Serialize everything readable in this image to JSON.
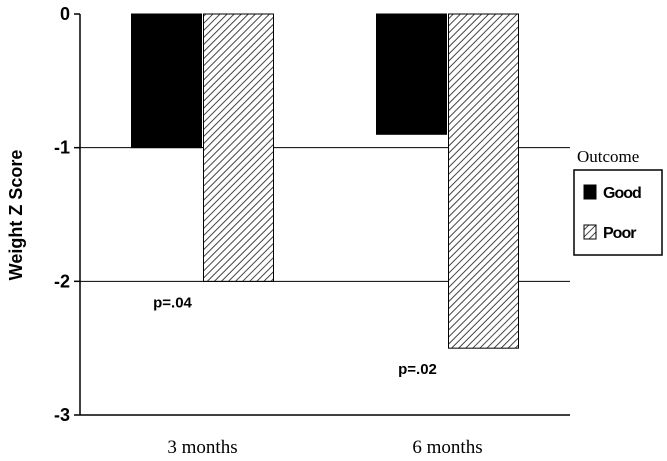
{
  "chart_data": {
    "type": "bar",
    "categories": [
      "3 months",
      "6 months"
    ],
    "series": [
      {
        "name": "Good",
        "values": [
          -1.0,
          -0.9
        ],
        "color": "#000000",
        "pattern": "solid"
      },
      {
        "name": "Poor",
        "values": [
          -2.0,
          -2.5
        ],
        "color": "#555555",
        "pattern": "diagonal-hatch"
      }
    ],
    "title": "",
    "xlabel": "",
    "ylabel": "Weight Z Score",
    "ylim": [
      -3,
      0
    ],
    "yticks": [
      0,
      -1,
      -2,
      -3
    ],
    "ytick_labels": [
      "0",
      "-1",
      "-2",
      "-3"
    ],
    "grid": true,
    "legend": {
      "title": "Outcome",
      "placement": "right"
    },
    "annotations": [
      {
        "text": "p=.04",
        "category": "3 months"
      },
      {
        "text": "p=.02",
        "category": "6 months"
      }
    ]
  }
}
